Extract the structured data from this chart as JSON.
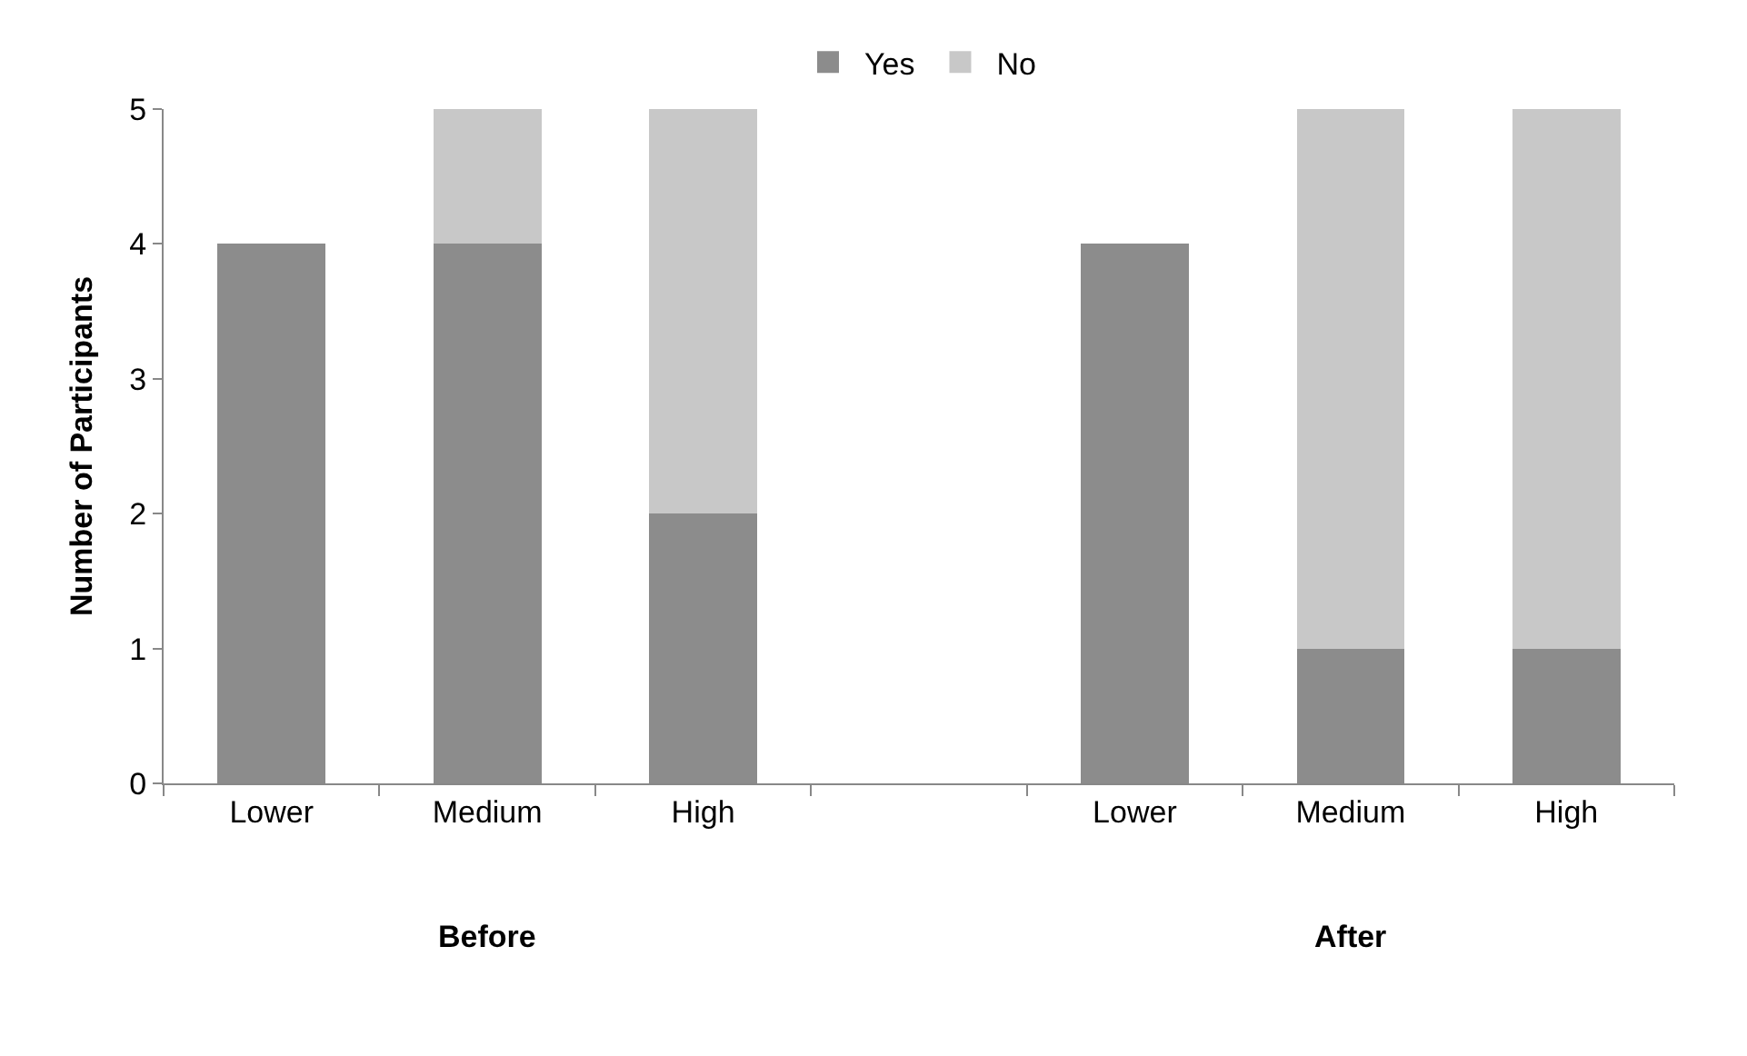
{
  "chart_data": {
    "type": "bar",
    "stacked": true,
    "ylabel": "Number of Participants",
    "categories": [
      "Lower",
      "Medium",
      "High",
      null,
      "Lower",
      "Medium",
      "High"
    ],
    "series": [
      {
        "name": "Yes",
        "color": "#8c8c8c",
        "values": [
          4,
          4,
          2,
          null,
          4,
          1,
          1
        ]
      },
      {
        "name": "No",
        "color": "#c8c8c8",
        "values": [
          0,
          1,
          3,
          null,
          0,
          4,
          4
        ]
      }
    ],
    "annotations": [
      "Before",
      "After"
    ],
    "ylim": [
      0,
      5
    ],
    "yticks": [
      0,
      1,
      2,
      3,
      4,
      5
    ],
    "legend": "top"
  }
}
